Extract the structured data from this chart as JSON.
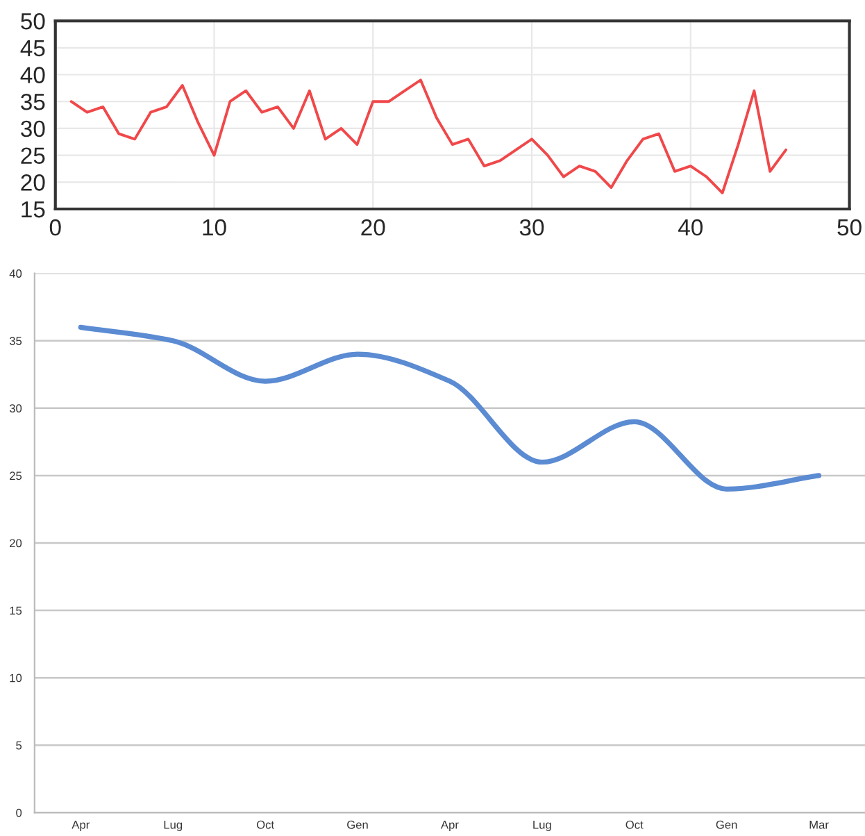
{
  "chart_data": [
    {
      "type": "line",
      "x": [
        1,
        2,
        3,
        4,
        5,
        6,
        7,
        8,
        9,
        10,
        11,
        12,
        13,
        14,
        15,
        16,
        17,
        18,
        19,
        20,
        21,
        22,
        23,
        24,
        25,
        26,
        27,
        28,
        29,
        30,
        31,
        32,
        33,
        34,
        35,
        36,
        37,
        38,
        39,
        40,
        41,
        42,
        43,
        44,
        45,
        46
      ],
      "values": [
        35,
        33,
        34,
        29,
        28,
        33,
        34,
        38,
        31,
        25,
        35,
        37,
        33,
        34,
        30,
        37,
        28,
        30,
        27,
        35,
        35,
        37,
        39,
        32,
        27,
        28,
        23,
        24,
        26,
        28,
        25,
        21,
        23,
        22,
        19,
        24,
        28,
        29,
        22,
        23,
        21,
        18,
        27,
        37,
        22,
        26
      ],
      "color": "#f0484a",
      "xlim": [
        0,
        50
      ],
      "ylim": [
        15,
        50
      ],
      "xticks": [
        0,
        10,
        20,
        30,
        40,
        50
      ],
      "yticks": [
        15,
        20,
        25,
        30,
        35,
        40,
        45,
        50
      ],
      "grid": true
    },
    {
      "type": "line",
      "categories": [
        "Apr",
        "Lug",
        "Oct",
        "Gen",
        "Apr",
        "Lug",
        "Oct",
        "Gen",
        "Mar"
      ],
      "values": [
        36,
        35,
        32,
        34,
        32,
        26,
        29,
        24,
        25
      ],
      "color": "#5b8bd2",
      "ylim": [
        0,
        40
      ],
      "yticks": [
        0,
        5,
        10,
        15,
        20,
        25,
        30,
        35,
        40
      ],
      "grid": "y"
    }
  ]
}
